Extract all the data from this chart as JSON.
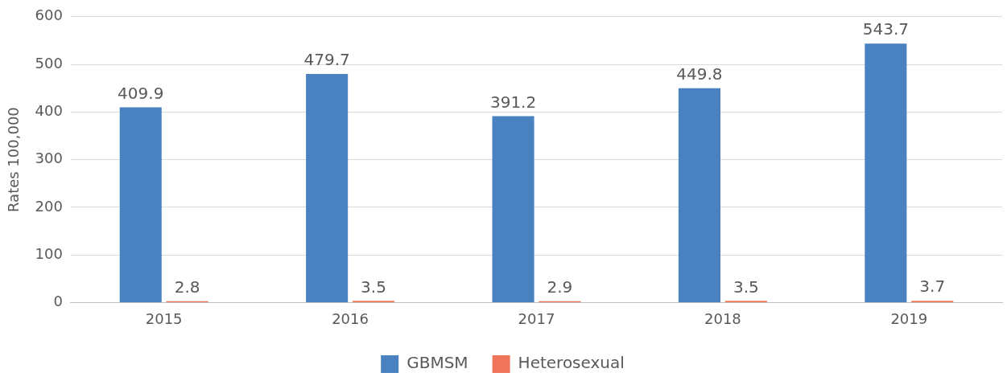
{
  "chart_data": {
    "type": "bar",
    "ylabel": "Rates 100,000",
    "categories": [
      "2015",
      "2016",
      "2017",
      "2018",
      "2019"
    ],
    "series": [
      {
        "name": "GBMSM",
        "color": "#4a81c0",
        "values": [
          409.9,
          479.7,
          391.2,
          449.8,
          543.7
        ]
      },
      {
        "name": "Heterosexual",
        "color": "#f0745a",
        "values": [
          2.8,
          3.5,
          2.9,
          3.5,
          3.7
        ]
      }
    ],
    "ylim": [
      0,
      600
    ],
    "yticks": [
      0,
      100,
      200,
      300,
      400,
      500,
      600
    ],
    "grid": "y",
    "legend": "bottom",
    "data_labels": true
  }
}
